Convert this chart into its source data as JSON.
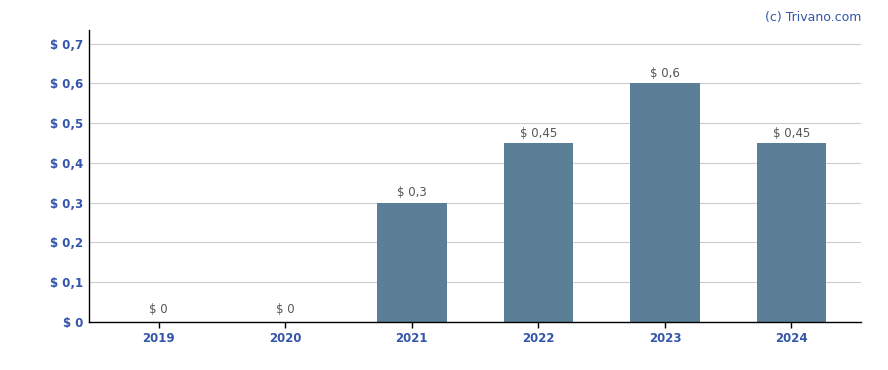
{
  "categories": [
    "2019",
    "2020",
    "2021",
    "2022",
    "2023",
    "2024"
  ],
  "values": [
    0,
    0,
    0.3,
    0.45,
    0.6,
    0.45
  ],
  "bar_color": "#5b7f96",
  "bar_labels": [
    "$ 0",
    "$ 0",
    "$ 0,3",
    "$ 0,45",
    "$ 0,6",
    "$ 0,45"
  ],
  "ylim": [
    0,
    0.735
  ],
  "yticks": [
    0,
    0.1,
    0.2,
    0.3,
    0.4,
    0.5,
    0.6,
    0.7
  ],
  "ytick_labels": [
    "$ 0",
    "$ 0,1",
    "$ 0,2",
    "$ 0,3",
    "$ 0,4",
    "$ 0,5",
    "$ 0,6",
    "$ 0,7"
  ],
  "background_color": "#ffffff",
  "grid_color": "#cccccc",
  "watermark": "(c) Trivano.com",
  "watermark_color": "#3355aa",
  "label_fontsize": 8.5,
  "tick_fontsize": 8.5,
  "bar_label_color": "#555555",
  "axis_tick_color": "#3355aa"
}
